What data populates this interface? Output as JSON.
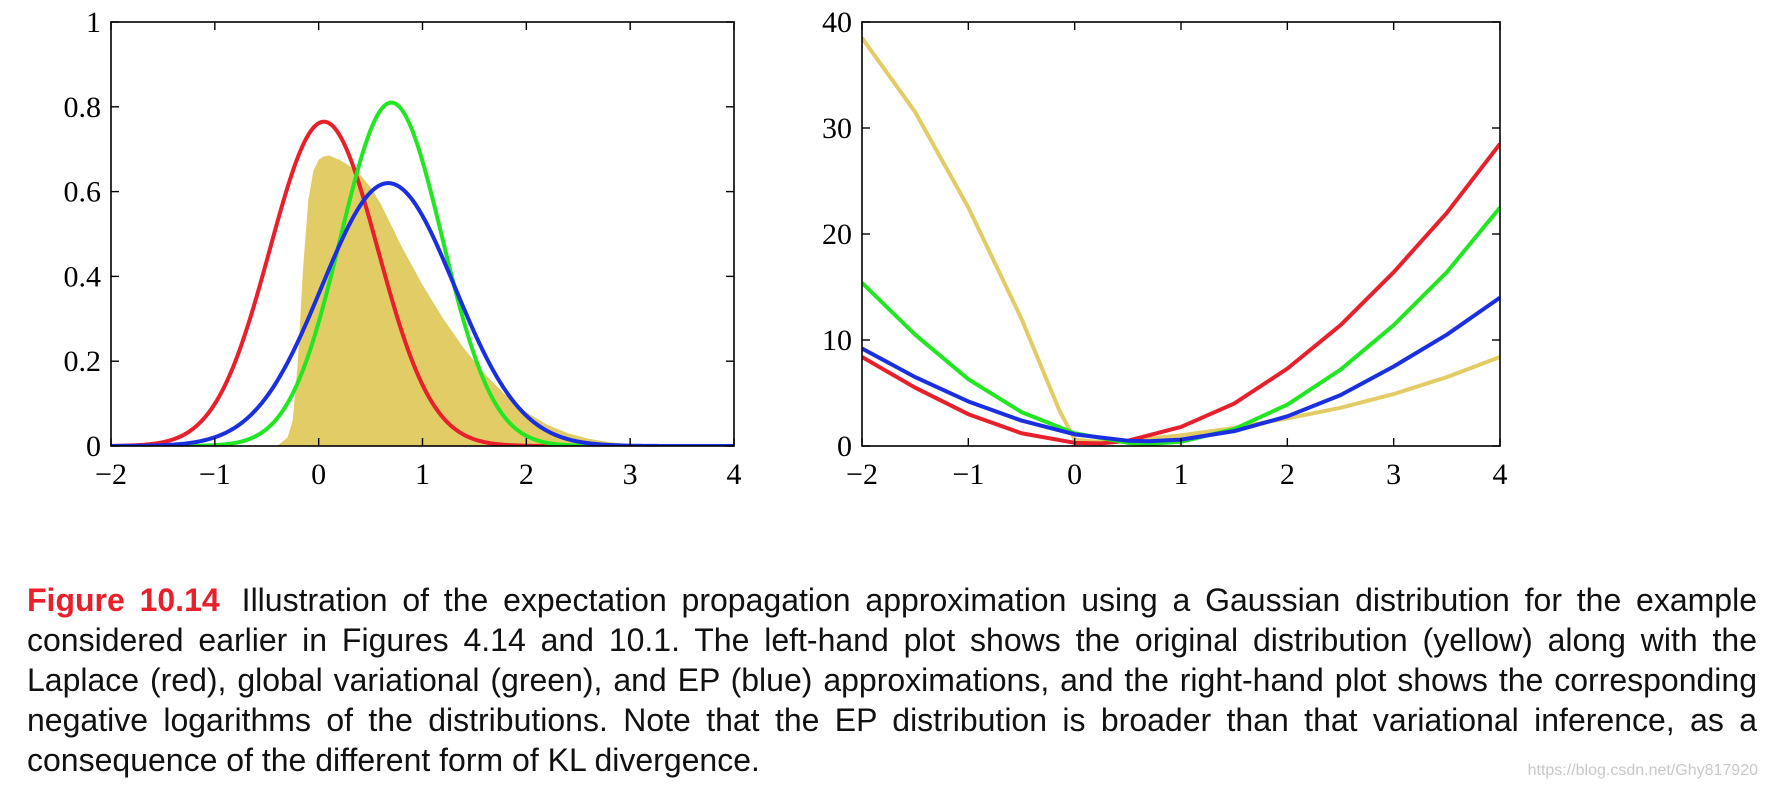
{
  "colors": {
    "laplace": "#e8202b",
    "variational": "#22e622",
    "ep": "#1a2fe0",
    "original": "#e2cc66",
    "caption_label": "#e8202b"
  },
  "chart_data": [
    {
      "type": "line",
      "title": "",
      "xlabel": "",
      "ylabel": "",
      "xlim": [
        -2,
        4
      ],
      "ylim": [
        0,
        1
      ],
      "xticks": [
        -2,
        -1,
        0,
        1,
        2,
        3,
        4
      ],
      "xtick_labels": [
        "−2",
        "−1",
        "0",
        "1",
        "2",
        "3",
        "4"
      ],
      "yticks": [
        0,
        0.2,
        0.4,
        0.6,
        0.8,
        1
      ],
      "ytick_labels": [
        "0",
        "0.2",
        "0.4",
        "0.6",
        "0.8",
        "1"
      ],
      "grid": false,
      "series": [
        {
          "name": "original",
          "style": "filled-area",
          "x": [
            -2,
            -0.4,
            -0.3,
            -0.25,
            -0.2,
            -0.15,
            -0.1,
            -0.05,
            0,
            0.05,
            0.1,
            0.2,
            0.3,
            0.4,
            0.5,
            0.6,
            0.7,
            0.8,
            0.9,
            1.0,
            1.2,
            1.4,
            1.6,
            1.8,
            2.0,
            2.2,
            2.4,
            2.6,
            2.8,
            3.0,
            3.2,
            3.5,
            4
          ],
          "y": [
            0,
            0,
            0.02,
            0.06,
            0.2,
            0.42,
            0.58,
            0.65,
            0.675,
            0.683,
            0.685,
            0.675,
            0.66,
            0.64,
            0.61,
            0.57,
            0.52,
            0.47,
            0.425,
            0.38,
            0.3,
            0.23,
            0.17,
            0.12,
            0.08,
            0.05,
            0.03,
            0.017,
            0.009,
            0.004,
            0.002,
            0.0005,
            0
          ]
        },
        {
          "name": "Laplace",
          "style": "line",
          "gaussian": {
            "mean": 0.05,
            "sd": 0.52,
            "peak": 0.765
          }
        },
        {
          "name": "global variational",
          "style": "line",
          "gaussian": {
            "mean": 0.7,
            "sd": 0.49,
            "peak": 0.81
          }
        },
        {
          "name": "EP",
          "style": "line",
          "gaussian": {
            "mean": 0.67,
            "sd": 0.64,
            "peak": 0.62
          }
        }
      ]
    },
    {
      "type": "line",
      "title": "",
      "xlabel": "",
      "ylabel": "",
      "xlim": [
        -2,
        4
      ],
      "ylim": [
        0,
        40
      ],
      "xticks": [
        -2,
        -1,
        0,
        1,
        2,
        3,
        4
      ],
      "xtick_labels": [
        "−2",
        "−1",
        "0",
        "1",
        "2",
        "3",
        "4"
      ],
      "yticks": [
        0,
        10,
        20,
        30,
        40
      ],
      "ytick_labels": [
        "0",
        "10",
        "20",
        "30",
        "40"
      ],
      "grid": false,
      "series": [
        {
          "name": "original",
          "style": "line",
          "x": [
            -2,
            -1.5,
            -1,
            -0.5,
            -0.15,
            0,
            0.2,
            0.5,
            1,
            1.5,
            2,
            2.5,
            3,
            3.5,
            4
          ],
          "y": [
            38.5,
            31.5,
            22.5,
            12.0,
            3.5,
            0.6,
            0.4,
            0.5,
            1.0,
            1.7,
            2.6,
            3.6,
            4.9,
            6.5,
            8.4
          ]
        },
        {
          "name": "Laplace",
          "style": "line",
          "x": [
            -2,
            -1.5,
            -1,
            -0.5,
            0,
            0.25,
            0.5,
            1,
            1.5,
            2,
            2.5,
            3,
            3.5,
            4
          ],
          "y": [
            8.4,
            5.5,
            3.0,
            1.2,
            0.3,
            0.25,
            0.5,
            1.8,
            4.0,
            7.3,
            11.4,
            16.4,
            22.0,
            28.5
          ]
        },
        {
          "name": "global variational",
          "style": "line",
          "x": [
            -2,
            -1.5,
            -1,
            -0.5,
            0,
            0.5,
            0.7,
            1,
            1.5,
            2,
            2.5,
            3,
            3.5,
            4
          ],
          "y": [
            15.4,
            10.5,
            6.3,
            3.2,
            1.2,
            0.3,
            0.2,
            0.4,
            1.6,
            3.9,
            7.2,
            11.4,
            16.4,
            22.5
          ]
        },
        {
          "name": "EP",
          "style": "line",
          "x": [
            -2,
            -1.5,
            -1,
            -0.5,
            0,
            0.5,
            0.7,
            1,
            1.5,
            2,
            2.5,
            3,
            3.5,
            4
          ],
          "y": [
            9.2,
            6.5,
            4.2,
            2.4,
            1.1,
            0.5,
            0.45,
            0.6,
            1.4,
            2.8,
            4.8,
            7.5,
            10.5,
            14.0
          ]
        }
      ]
    }
  ],
  "caption": {
    "label": "Figure 10.14",
    "text": "Illustration of the expectation propagation approximation using a Gaussian distribution for the example considered earlier in Figures 4.14 and 10.1. The left-hand plot shows the original distribution (yellow) along with the Laplace (red), global variational (green), and EP (blue) approximations, and the right-hand plot shows the corresponding negative logarithms of the distributions. Note that the EP distribution is broader than that variational inference, as a consequence of the different form of KL divergence."
  },
  "watermark": "https://blog.csdn.net/Ghy817920"
}
